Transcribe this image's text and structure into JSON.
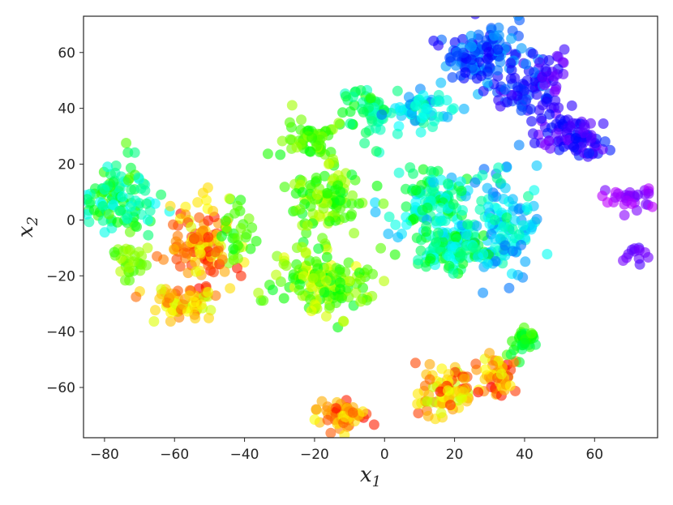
{
  "chart_data": {
    "type": "scatter",
    "xlabel": "x",
    "xlabel_sub": "1",
    "ylabel": "x",
    "ylabel_sub": "2",
    "xlim": [
      -86,
      78
    ],
    "ylim": [
      -78,
      73
    ],
    "xticks": [
      -80,
      -60,
      -40,
      -20,
      0,
      20,
      40,
      60
    ],
    "yticks": [
      -60,
      -40,
      -20,
      0,
      20,
      40,
      60
    ],
    "xtick_labels": [
      "−80",
      "−60",
      "−40",
      "−20",
      "0",
      "20",
      "40",
      "60"
    ],
    "ytick_labels": [
      "−60",
      "−40",
      "−20",
      "0",
      "20",
      "40",
      "60"
    ],
    "grid": false,
    "marker": "circle",
    "alpha": 0.6,
    "colormap": "hsv (red → yellow → green → cyan → blue → purple)",
    "hue_scale": "0 = red, 120 = green, 180 = cyan, 240 = blue, 275 = purple",
    "clusters": [
      {
        "x": -76,
        "y": 8,
        "spread_x": 7,
        "spread_y": 9,
        "count": 110,
        "hue": [
          95,
          185
        ]
      },
      {
        "x": -72,
        "y": -14,
        "spread_x": 4,
        "spread_y": 5,
        "count": 30,
        "hue": [
          75,
          110
        ]
      },
      {
        "x": -52,
        "y": -8,
        "spread_x": 6,
        "spread_y": 10,
        "count": 120,
        "hue": [
          0,
          70
        ]
      },
      {
        "x": -57,
        "y": -30,
        "spread_x": 6,
        "spread_y": 4,
        "count": 60,
        "hue": [
          20,
          75
        ]
      },
      {
        "x": -42,
        "y": -5,
        "spread_x": 4,
        "spread_y": 6,
        "count": 30,
        "hue": [
          90,
          130
        ]
      },
      {
        "x": -22,
        "y": 28,
        "spread_x": 6,
        "spread_y": 5,
        "count": 50,
        "hue": [
          80,
          125
        ]
      },
      {
        "x": -17,
        "y": 8,
        "spread_x": 7,
        "spread_y": 8,
        "count": 100,
        "hue": [
          70,
          130
        ]
      },
      {
        "x": -18,
        "y": -22,
        "spread_x": 9,
        "spread_y": 8,
        "count": 150,
        "hue": [
          60,
          130
        ]
      },
      {
        "x": -5,
        "y": 38,
        "spread_x": 5,
        "spread_y": 7,
        "count": 50,
        "hue": [
          110,
          170
        ]
      },
      {
        "x": 10,
        "y": 40,
        "spread_x": 7,
        "spread_y": 5,
        "count": 60,
        "hue": [
          150,
          215
        ]
      },
      {
        "x": 14,
        "y": 5,
        "spread_x": 8,
        "spread_y": 10,
        "count": 130,
        "hue": [
          120,
          200
        ]
      },
      {
        "x": 20,
        "y": -10,
        "spread_x": 8,
        "spread_y": 6,
        "count": 90,
        "hue": [
          120,
          190
        ]
      },
      {
        "x": 34,
        "y": -2,
        "spread_x": 7,
        "spread_y": 12,
        "count": 130,
        "hue": [
          150,
          215
        ]
      },
      {
        "x": 28,
        "y": 58,
        "spread_x": 8,
        "spread_y": 8,
        "count": 130,
        "hue": [
          195,
          250
        ]
      },
      {
        "x": 40,
        "y": 45,
        "spread_x": 6,
        "spread_y": 5,
        "count": 50,
        "hue": [
          210,
          260
        ]
      },
      {
        "x": 47,
        "y": 52,
        "spread_x": 4,
        "spread_y": 5,
        "count": 30,
        "hue": [
          245,
          275
        ]
      },
      {
        "x": 50,
        "y": 33,
        "spread_x": 5,
        "spread_y": 5,
        "count": 50,
        "hue": [
          235,
          275
        ]
      },
      {
        "x": 57,
        "y": 27,
        "spread_x": 4,
        "spread_y": 4,
        "count": 40,
        "hue": [
          230,
          265
        ]
      },
      {
        "x": 70,
        "y": 8,
        "spread_x": 5,
        "spread_y": 3,
        "count": 30,
        "hue": [
          265,
          285
        ]
      },
      {
        "x": 72,
        "y": -12,
        "spread_x": 2,
        "spread_y": 3,
        "count": 12,
        "hue": [
          255,
          275
        ]
      },
      {
        "x": -12,
        "y": -70,
        "spread_x": 5,
        "spread_y": 4,
        "count": 60,
        "hue": [
          0,
          70
        ]
      },
      {
        "x": 18,
        "y": -62,
        "spread_x": 6,
        "spread_y": 5,
        "count": 90,
        "hue": [
          0,
          80
        ]
      },
      {
        "x": 32,
        "y": -55,
        "spread_x": 4,
        "spread_y": 5,
        "count": 50,
        "hue": [
          0,
          70
        ]
      },
      {
        "x": 40,
        "y": -43,
        "spread_x": 3,
        "spread_y": 4,
        "count": 35,
        "hue": [
          100,
          145
        ]
      }
    ]
  }
}
